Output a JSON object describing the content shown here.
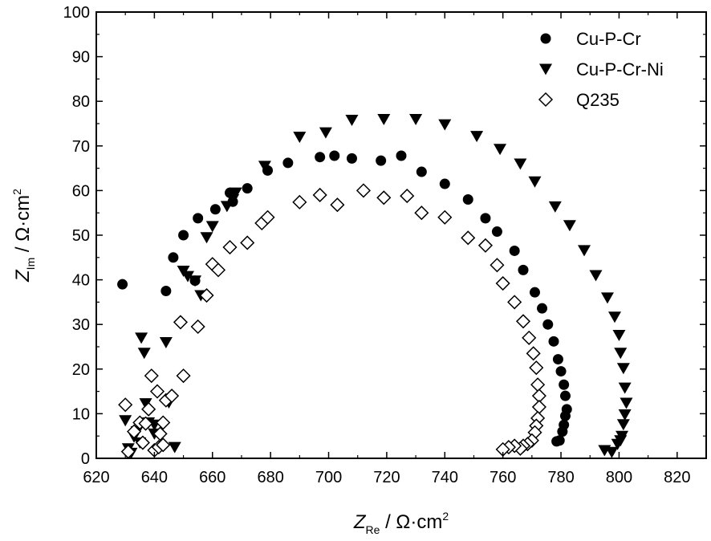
{
  "chart_data": {
    "type": "scatter",
    "xlabel": {
      "main": "Z",
      "sub": "Re",
      "unit": " / Ω·cm",
      "sup": "2"
    },
    "ylabel": {
      "main": "Z",
      "sub": "Im",
      "unit": " / Ω·cm",
      "sup": "2"
    },
    "xlim": [
      620,
      830
    ],
    "ylim": [
      0,
      100
    ],
    "x_ticks": [
      620,
      640,
      660,
      680,
      700,
      720,
      740,
      760,
      780,
      800,
      820
    ],
    "y_ticks": [
      0,
      10,
      20,
      30,
      40,
      50,
      60,
      70,
      80,
      90,
      100
    ],
    "grid": false,
    "legend_position": "top-right",
    "colors": {
      "marker": "#000000",
      "open_fill": "#ffffff"
    },
    "series": [
      {
        "name": "Cu-P-Cr",
        "marker": "circle",
        "points": [
          [
            629,
            39
          ],
          [
            644,
            37.5
          ],
          [
            646.5,
            45
          ],
          [
            650,
            50
          ],
          [
            654,
            39.8
          ],
          [
            655,
            53.8
          ],
          [
            661,
            55.8
          ],
          [
            666,
            59.5
          ],
          [
            667,
            57.5
          ],
          [
            672,
            60.5
          ],
          [
            679,
            64.5
          ],
          [
            686,
            66.2
          ],
          [
            697,
            67.5
          ],
          [
            702,
            67.8
          ],
          [
            708,
            67.2
          ],
          [
            718,
            66.7
          ],
          [
            725,
            67.8
          ],
          [
            732,
            64.2
          ],
          [
            740,
            61.5
          ],
          [
            748,
            58
          ],
          [
            754,
            53.8
          ],
          [
            758,
            50.8
          ],
          [
            764,
            46.5
          ],
          [
            767,
            42.2
          ],
          [
            771,
            37.2
          ],
          [
            773.5,
            33.6
          ],
          [
            775.5,
            30
          ],
          [
            777.5,
            26.2
          ],
          [
            779,
            22.2
          ],
          [
            780,
            19.5
          ],
          [
            781,
            16.5
          ],
          [
            781.5,
            14
          ],
          [
            782,
            11
          ],
          [
            781.5,
            9.5
          ],
          [
            781,
            7.5
          ],
          [
            780.5,
            6
          ],
          [
            779.5,
            4
          ],
          [
            778.5,
            3.8
          ]
        ]
      },
      {
        "name": "Cu-P-Cr-Ni",
        "marker": "triangle-down",
        "points": [
          [
            630,
            8.5
          ],
          [
            631,
            2.2
          ],
          [
            632,
            1.2
          ],
          [
            633,
            4.8
          ],
          [
            634,
            6
          ],
          [
            635,
            3.5
          ],
          [
            635.5,
            27
          ],
          [
            636.5,
            23.6
          ],
          [
            637,
            12.3
          ],
          [
            638,
            8
          ],
          [
            640,
            7.5
          ],
          [
            640,
            5.5
          ],
          [
            644,
            26
          ],
          [
            645,
            12.5
          ],
          [
            647,
            2.5
          ],
          [
            650,
            42
          ],
          [
            651.5,
            40.8
          ],
          [
            654,
            39.8
          ],
          [
            656,
            36.5
          ],
          [
            658,
            49.5
          ],
          [
            660,
            52
          ],
          [
            665,
            56.5
          ],
          [
            667,
            58
          ],
          [
            668,
            59.5
          ],
          [
            678,
            65.5
          ],
          [
            690,
            72
          ],
          [
            699,
            73
          ],
          [
            708,
            75.8
          ],
          [
            719,
            76
          ],
          [
            730,
            76
          ],
          [
            740,
            74.8
          ],
          [
            751,
            72.2
          ],
          [
            759,
            69.3
          ],
          [
            766,
            66
          ],
          [
            771,
            62
          ],
          [
            778,
            56.4
          ],
          [
            783,
            52.2
          ],
          [
            788,
            46.6
          ],
          [
            792,
            41
          ],
          [
            796,
            36
          ],
          [
            798.5,
            31.7
          ],
          [
            800,
            27.6
          ],
          [
            800.5,
            23.6
          ],
          [
            801.5,
            20.2
          ],
          [
            802,
            15.8
          ],
          [
            802.5,
            12.4
          ],
          [
            802,
            9.8
          ],
          [
            801.5,
            7.6
          ],
          [
            801,
            5
          ],
          [
            800.5,
            4
          ],
          [
            799.5,
            3.2
          ],
          [
            797.5,
            1.4
          ],
          [
            795,
            1.8
          ]
        ]
      },
      {
        "name": "Q235",
        "marker": "diamond-open",
        "points": [
          [
            630,
            12
          ],
          [
            631,
            1.5
          ],
          [
            633,
            6
          ],
          [
            635,
            8
          ],
          [
            636,
            3.5
          ],
          [
            637,
            7.8
          ],
          [
            638,
            11
          ],
          [
            639,
            18.5
          ],
          [
            640,
            1.8
          ],
          [
            641,
            15
          ],
          [
            641.5,
            2.5
          ],
          [
            642,
            5.5
          ],
          [
            643,
            3
          ],
          [
            643,
            8
          ],
          [
            644,
            13
          ],
          [
            646,
            14
          ],
          [
            649,
            30.5
          ],
          [
            650,
            18.5
          ],
          [
            655,
            29.5
          ],
          [
            658,
            36.5
          ],
          [
            660,
            43.5
          ],
          [
            662,
            42.2
          ],
          [
            666,
            47.3
          ],
          [
            672,
            48.3
          ],
          [
            677,
            52.7
          ],
          [
            679,
            54
          ],
          [
            690,
            57.4
          ],
          [
            697,
            59
          ],
          [
            703,
            56.8
          ],
          [
            712,
            60
          ],
          [
            719,
            58.4
          ],
          [
            727,
            58.8
          ],
          [
            732,
            55
          ],
          [
            740,
            54
          ],
          [
            748,
            49.4
          ],
          [
            754,
            47.7
          ],
          [
            758,
            43.3
          ],
          [
            760,
            39.2
          ],
          [
            764,
            35
          ],
          [
            767,
            30.7
          ],
          [
            769,
            27
          ],
          [
            770.5,
            23.5
          ],
          [
            771.5,
            20.3
          ],
          [
            772,
            16.5
          ],
          [
            772.5,
            14
          ],
          [
            772.5,
            11.5
          ],
          [
            772,
            9
          ],
          [
            771.5,
            7.3
          ],
          [
            771,
            5.8
          ],
          [
            770,
            4
          ],
          [
            768.5,
            3.2
          ],
          [
            767,
            2.8
          ],
          [
            766,
            2.2
          ],
          [
            764,
            2.8
          ],
          [
            762,
            2.5
          ],
          [
            760,
            2
          ]
        ]
      }
    ]
  }
}
